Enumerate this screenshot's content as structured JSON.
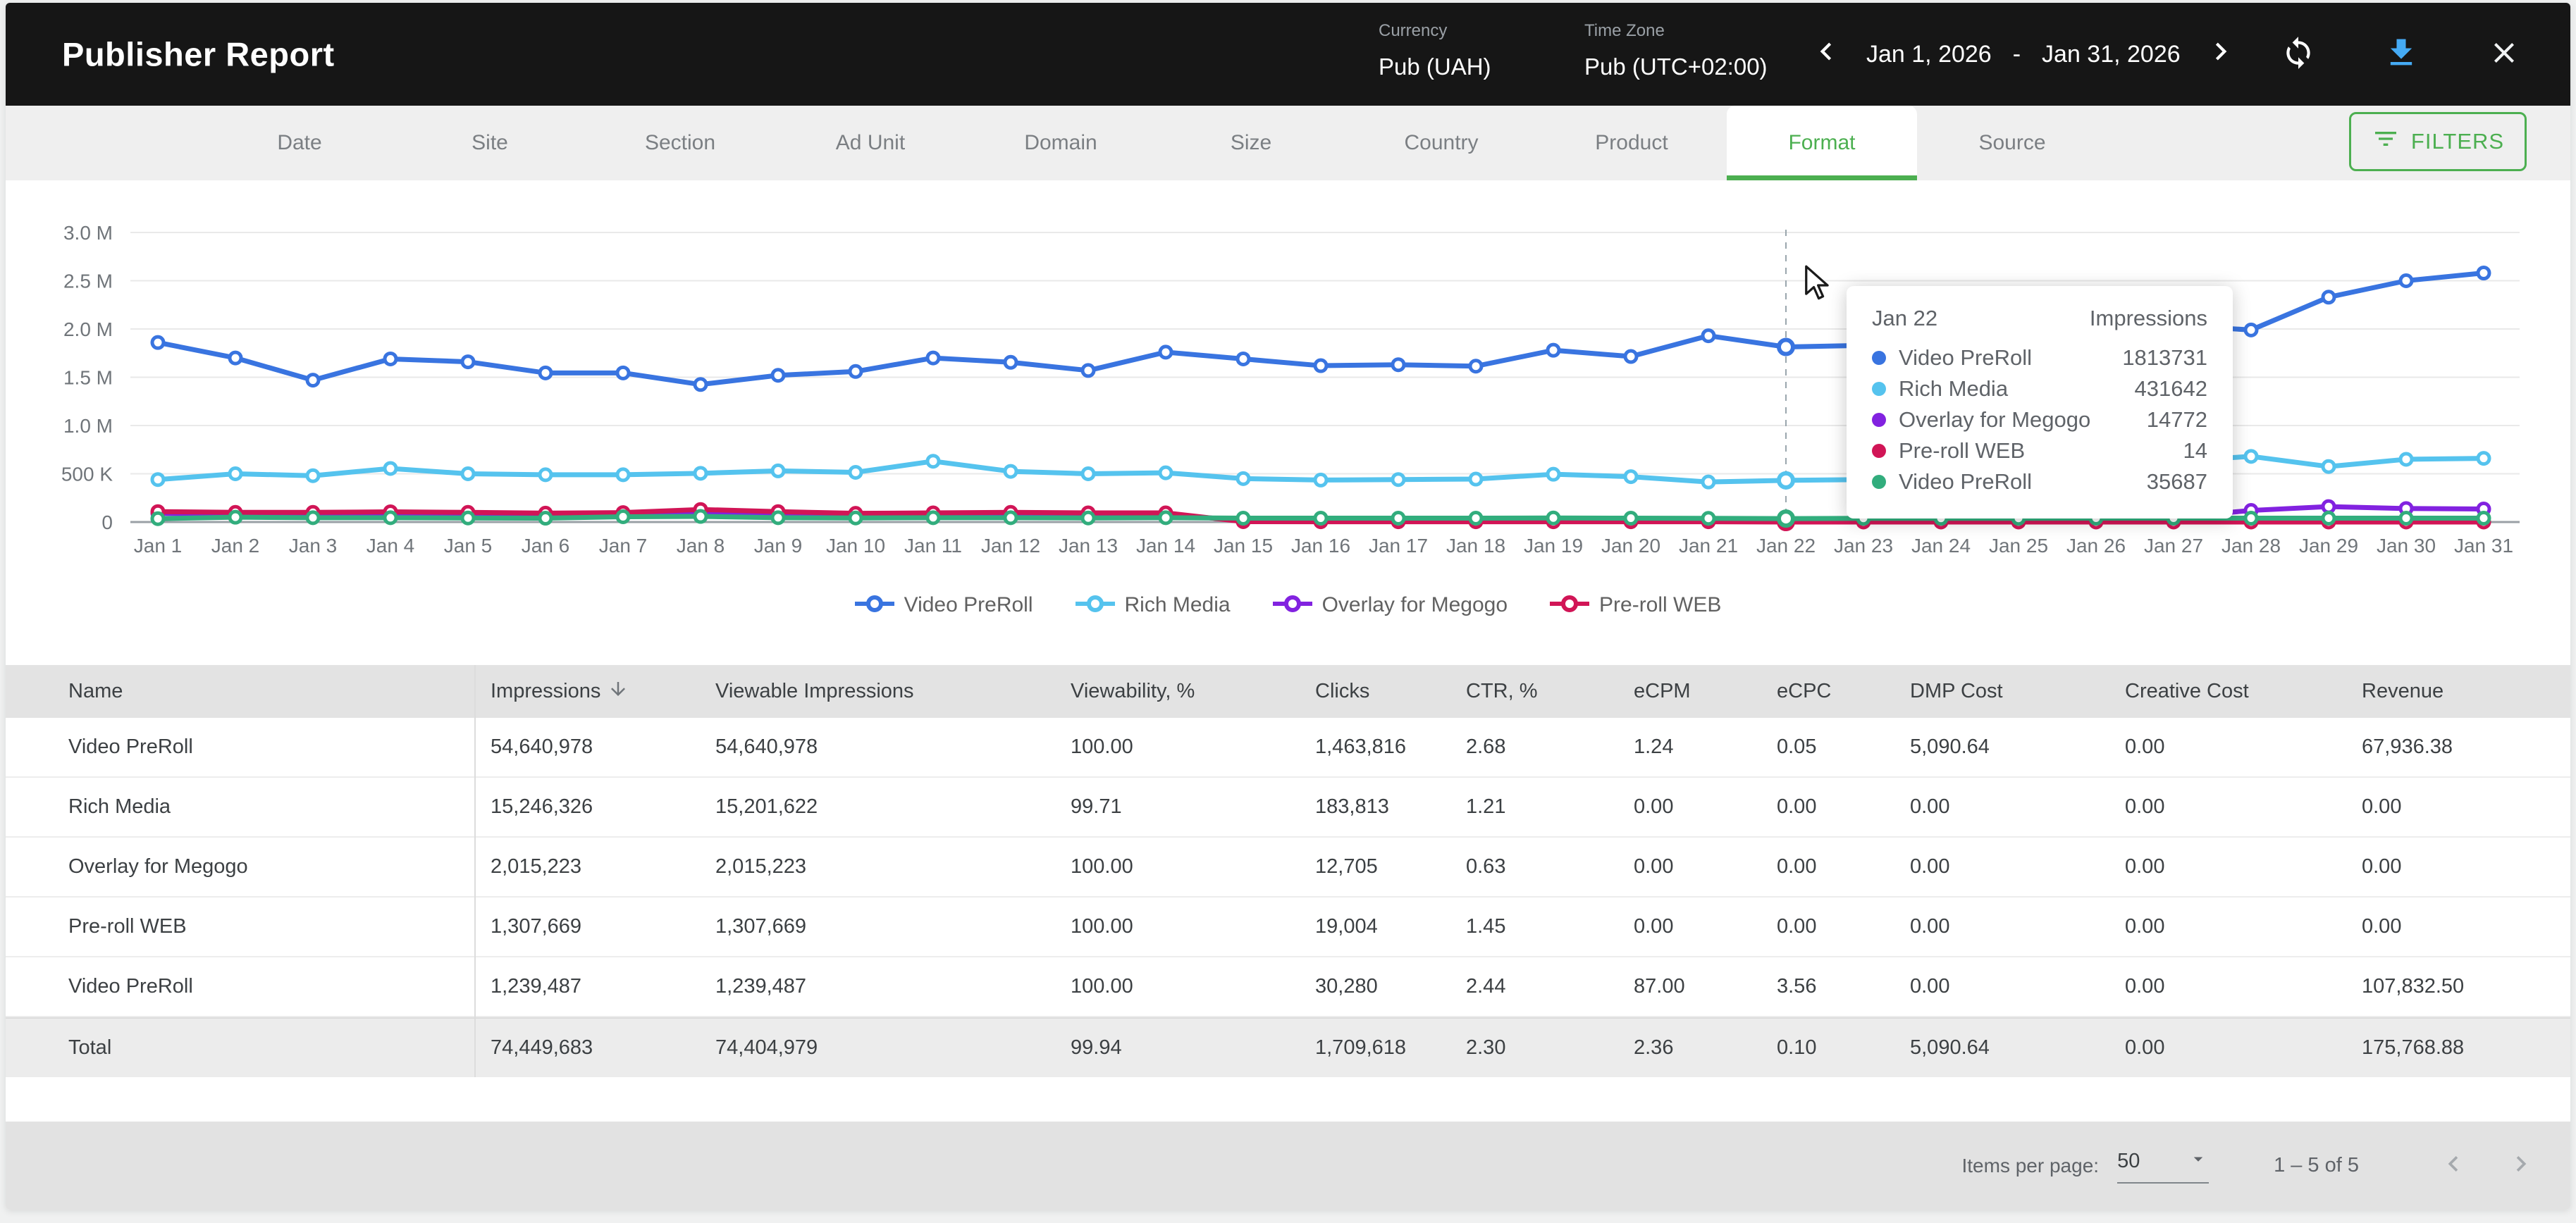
{
  "colors": {
    "accent_green": "#4caf50",
    "topbar_bg": "#161616",
    "download_blue": "#45abf5",
    "series_blue": "#3974e0",
    "series_lightblue": "#55c3ee",
    "series_purple": "#8222e0",
    "series_crimson": "#d11556",
    "series_green": "#32ad7d"
  },
  "header": {
    "title": "Publisher Report",
    "currency_label": "Currency",
    "currency_value": "Pub (UAH)",
    "timezone_label": "Time Zone",
    "timezone_value": "Pub (UTC+02:00)",
    "date_range_start": "Jan 1, 2026",
    "date_range_separator": "-",
    "date_range_end": "Jan 31, 2026"
  },
  "tabs": [
    "Date",
    "Site",
    "Section",
    "Ad Unit",
    "Domain",
    "Size",
    "Country",
    "Product",
    "Format",
    "Source"
  ],
  "active_tab": "Format",
  "filters_button_label": "FILTERS",
  "chart_data": {
    "type": "line",
    "title": "",
    "ylabel": "Impressions",
    "ylim": [
      0,
      3000000
    ],
    "ytick_labels": [
      "0",
      "500 K",
      "1.0 M",
      "1.5 M",
      "2.0 M",
      "2.5 M",
      "3.0 M"
    ],
    "grid": true,
    "legend_position": "bottom",
    "hover_date": "Jan 22",
    "hover_index": 21,
    "x": [
      "Jan 1",
      "Jan 2",
      "Jan 3",
      "Jan 4",
      "Jan 5",
      "Jan 6",
      "Jan 7",
      "Jan 8",
      "Jan 9",
      "Jan 10",
      "Jan 11",
      "Jan 12",
      "Jan 13",
      "Jan 14",
      "Jan 15",
      "Jan 16",
      "Jan 17",
      "Jan 18",
      "Jan 19",
      "Jan 20",
      "Jan 21",
      "Jan 22",
      "Jan 23",
      "Jan 24",
      "Jan 25",
      "Jan 26",
      "Jan 27",
      "Jan 28",
      "Jan 29",
      "Jan 30",
      "Jan 31"
    ],
    "series": [
      {
        "name": "Video PreRoll",
        "color": "#3974e0",
        "values": [
          1860000,
          1700000,
          1470000,
          1690000,
          1660000,
          1545000,
          1545000,
          1425000,
          1520000,
          1560000,
          1700000,
          1655000,
          1570000,
          1760000,
          1690000,
          1620000,
          1630000,
          1615000,
          1780000,
          1715000,
          1930000,
          1813731,
          1830000,
          1865000,
          1910000,
          1970000,
          2040000,
          1990000,
          2330000,
          2500000,
          2580000
        ]
      },
      {
        "name": "Rich Media",
        "color": "#55c3ee",
        "values": [
          440000,
          500000,
          480000,
          555000,
          500000,
          490000,
          490000,
          505000,
          530000,
          515000,
          630000,
          525000,
          500000,
          510000,
          450000,
          435000,
          440000,
          445000,
          495000,
          470000,
          415000,
          431642,
          440000,
          450000,
          460000,
          480000,
          630000,
          680000,
          575000,
          650000,
          660000
        ]
      },
      {
        "name": "Overlay for Megogo",
        "color": "#8222e0",
        "values": [
          90000,
          82000,
          80000,
          80000,
          78000,
          75000,
          80000,
          95000,
          90000,
          80000,
          80000,
          78000,
          76000,
          78000,
          16000,
          15000,
          15000,
          15000,
          15000,
          15000,
          15000,
          14772,
          15000,
          15000,
          15000,
          22000,
          48000,
          120000,
          160000,
          140000,
          135000
        ]
      },
      {
        "name": "Pre-roll WEB",
        "color": "#d11556",
        "values": [
          108000,
          100000,
          100000,
          106000,
          100000,
          92000,
          98000,
          130000,
          108000,
          90000,
          95000,
          100000,
          95000,
          95000,
          4000,
          3000,
          3000,
          3000,
          3000,
          3000,
          3000,
          14,
          100,
          100,
          100,
          100,
          100,
          100,
          100,
          100,
          100
        ]
      },
      {
        "name": "Video PreRoll",
        "color": "#32ad7d",
        "values": [
          35000,
          50000,
          45000,
          45000,
          42000,
          40000,
          55000,
          58000,
          45000,
          42000,
          45000,
          45000,
          42000,
          45000,
          40000,
          40000,
          40000,
          40000,
          42000,
          40000,
          38000,
          35687,
          38000,
          38000,
          38000,
          40000,
          40000,
          40000,
          40000,
          40000,
          40000
        ]
      }
    ]
  },
  "tooltip": {
    "date": "Jan 22",
    "value_header": "Impressions",
    "rows": [
      {
        "label": "Video PreRoll",
        "value": "1813731",
        "color": "#3974e0"
      },
      {
        "label": "Rich Media",
        "value": "431642",
        "color": "#55c3ee"
      },
      {
        "label": "Overlay for Megogo",
        "value": "14772",
        "color": "#8222e0"
      },
      {
        "label": "Pre-roll WEB",
        "value": "14",
        "color": "#d11556"
      },
      {
        "label": "Video PreRoll",
        "value": "35687",
        "color": "#32ad7d"
      }
    ]
  },
  "legend": [
    {
      "label": "Video PreRoll",
      "color": "#3974e0"
    },
    {
      "label": "Rich Media",
      "color": "#55c3ee"
    },
    {
      "label": "Overlay for Megogo",
      "color": "#8222e0"
    },
    {
      "label": "Pre-roll WEB",
      "color": "#d11556"
    }
  ],
  "table": {
    "columns": [
      "Name",
      "Impressions",
      "Viewable Impressions",
      "Viewability, %",
      "Clicks",
      "CTR, %",
      "eCPM",
      "eCPC",
      "DMP Cost",
      "Creative Cost",
      "Revenue"
    ],
    "sorted_column": "Impressions",
    "rows": [
      [
        "Video PreRoll",
        "54,640,978",
        "54,640,978",
        "100.00",
        "1,463,816",
        "2.68",
        "1.24",
        "0.05",
        "5,090.64",
        "0.00",
        "67,936.38"
      ],
      [
        "Rich Media",
        "15,246,326",
        "15,201,622",
        "99.71",
        "183,813",
        "1.21",
        "0.00",
        "0.00",
        "0.00",
        "0.00",
        "0.00"
      ],
      [
        "Overlay for Megogo",
        "2,015,223",
        "2,015,223",
        "100.00",
        "12,705",
        "0.63",
        "0.00",
        "0.00",
        "0.00",
        "0.00",
        "0.00"
      ],
      [
        "Pre-roll WEB",
        "1,307,669",
        "1,307,669",
        "100.00",
        "19,004",
        "1.45",
        "0.00",
        "0.00",
        "0.00",
        "0.00",
        "0.00"
      ],
      [
        "Video PreRoll",
        "1,239,487",
        "1,239,487",
        "100.00",
        "30,280",
        "2.44",
        "87.00",
        "3.56",
        "0.00",
        "0.00",
        "107,832.50"
      ]
    ],
    "total_row": [
      "Total",
      "74,449,683",
      "74,404,979",
      "99.94",
      "1,709,618",
      "2.30",
      "2.36",
      "0.10",
      "5,090.64",
      "0.00",
      "175,768.88"
    ]
  },
  "footer": {
    "items_per_page_label": "Items per page:",
    "items_per_page_value": "50",
    "page_range": "1 – 5 of 5"
  }
}
